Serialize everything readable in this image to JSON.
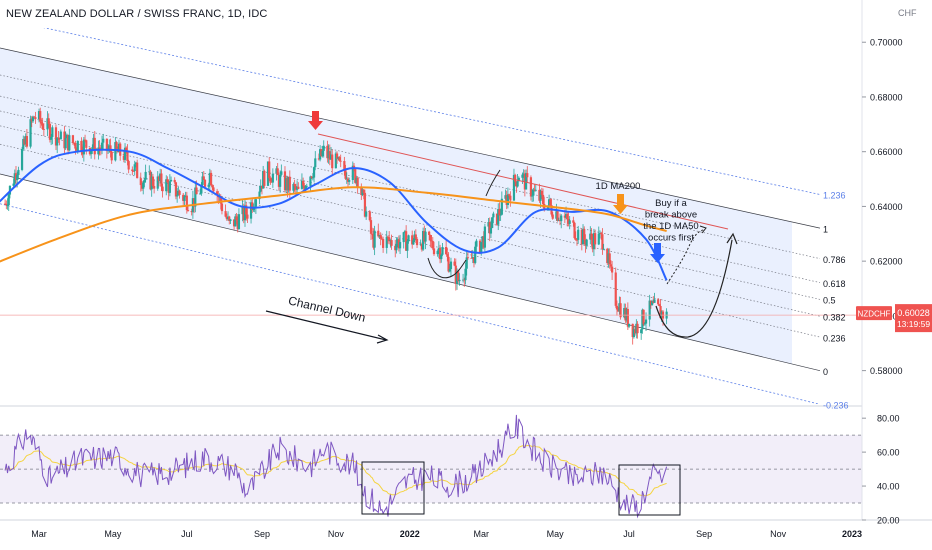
{
  "header": {
    "title": "NEW ZEALAND DOLLAR / SWISS FRANC, 1D, IDC",
    "currency": "CHF"
  },
  "price_badge": {
    "symbol": "NZDCHF",
    "price": "0.60028",
    "countdown": "13:19:59"
  },
  "colors": {
    "ma50": "#2962ff",
    "ma200": "#f7931a",
    "bull": "#26a69a",
    "bear": "#ef5350",
    "channel_fill": "#e3ebfd",
    "fib_line": "#787b86",
    "outer_line": "#5b7fe8",
    "rsi_line": "#7e57c2",
    "rsi_ma": "#f5d442",
    "rsi_band": "#ede7f6",
    "annotation_red": "#ef3a3a",
    "annotation_orange": "#f7931a",
    "annotation_blue": "#2962ff",
    "price_line": "#f4a6a6"
  },
  "chart_data": [
    {
      "type": "candlestick",
      "title": "NEW ZEALAND DOLLAR / SWISS FRANC, 1D, IDC",
      "ylabel": "CHF",
      "ylim": [
        0.5678,
        0.7052
      ],
      "x_tick_labels": [
        "Mar",
        "May",
        "Jul",
        "Sep",
        "Nov",
        "2022",
        "Mar",
        "May",
        "Jul",
        "Sep",
        "Nov",
        "2023"
      ],
      "y_tick_labels": [
        "0.70000",
        "0.68000",
        "0.66000",
        "0.64000",
        "0.62000",
        "0.60000",
        "0.58000"
      ],
      "current_price": 0.60028,
      "price_path": {
        "dates": [
          "2021-02-01",
          "2021-02-25",
          "2021-03-20",
          "2021-04-15",
          "2021-05-10",
          "2021-05-25",
          "2021-06-15",
          "2021-07-05",
          "2021-07-20",
          "2021-08-05",
          "2021-08-20",
          "2021-09-05",
          "2021-10-01",
          "2021-10-22",
          "2021-11-05",
          "2021-11-19",
          "2021-12-01",
          "2021-12-20",
          "2022-01-10",
          "2022-01-28",
          "2022-02-10",
          "2022-02-25",
          "2022-03-15",
          "2022-04-01",
          "2022-04-15",
          "2022-05-05",
          "2022-05-25",
          "2022-06-10",
          "2022-06-20",
          "2022-07-05",
          "2022-07-20",
          "2022-08-01"
        ],
        "close": [
          0.641,
          0.673,
          0.664,
          0.662,
          0.659,
          0.65,
          0.648,
          0.641,
          0.652,
          0.633,
          0.638,
          0.653,
          0.645,
          0.66,
          0.654,
          0.651,
          0.628,
          0.627,
          0.628,
          0.624,
          0.613,
          0.624,
          0.637,
          0.652,
          0.644,
          0.637,
          0.628,
          0.628,
          0.606,
          0.595,
          0.603,
          0.6
        ]
      },
      "ma_series": [
        {
          "name": "1D MA50",
          "x": [
            "2021-01-20",
            "2021-03-01",
            "2021-04-01",
            "2021-05-15",
            "2021-06-15",
            "2021-07-15",
            "2021-08-15",
            "2021-09-15",
            "2021-10-15",
            "2021-11-15",
            "2021-12-15",
            "2022-01-15",
            "2022-02-15",
            "2022-03-15",
            "2022-04-15",
            "2022-05-15",
            "2022-06-15",
            "2022-07-15",
            "2022-08-01"
          ],
          "y": [
            0.6385,
            0.655,
            0.66,
            0.66,
            0.654,
            0.647,
            0.64,
            0.641,
            0.648,
            0.654,
            0.649,
            0.634,
            0.624,
            0.625,
            0.638,
            0.638,
            0.638,
            0.628,
            0.613
          ]
        },
        {
          "name": "1D MA200",
          "x": [
            "2021-01-20",
            "2021-03-15",
            "2021-05-15",
            "2021-07-15",
            "2021-09-15",
            "2021-11-15",
            "2022-01-15",
            "2022-03-15",
            "2022-05-15",
            "2022-06-15",
            "2022-07-15",
            "2022-08-01"
          ],
          "y": [
            0.6185,
            0.628,
            0.637,
            0.641,
            0.644,
            0.647,
            0.645,
            0.642,
            0.639,
            0.637,
            0.633,
            0.631
          ]
        }
      ],
      "fibonacci_channel": {
        "levels": [
          "1.236",
          "1",
          "0.786",
          "0.618",
          "0.5",
          "0.382",
          "0.236",
          "0",
          "-0.236"
        ],
        "level_values": [
          1.236,
          1,
          0.786,
          0.618,
          0.5,
          0.382,
          0.236,
          0,
          -0.236
        ]
      },
      "annotations": [
        {
          "text": "1D MA200"
        },
        {
          "text": "Buy if a break above the 1D MA50 occurs first"
        },
        {
          "text": "Channel Down"
        }
      ]
    },
    {
      "type": "line",
      "indicator": "RSI",
      "ylim": [
        20,
        86
      ],
      "y_tick_labels": [
        "80.00",
        "60.00",
        "40.00",
        "20.00"
      ],
      "reference_lines": [
        70,
        50,
        30
      ],
      "series": [
        {
          "x": [
            "2021-02-01",
            "2021-02-20",
            "2021-03-10",
            "2021-04-05",
            "2021-05-01",
            "2021-05-25",
            "2021-06-20",
            "2021-07-15",
            "2021-08-10",
            "2021-08-20",
            "2021-09-15",
            "2021-10-10",
            "2021-10-22",
            "2021-11-15",
            "2021-11-26",
            "2021-12-10",
            "2021-12-28",
            "2022-01-15",
            "2022-02-05",
            "2022-02-25",
            "2022-03-15",
            "2022-03-30",
            "2022-04-20",
            "2022-05-15",
            "2022-06-10",
            "2022-06-28",
            "2022-07-08",
            "2022-07-20",
            "2022-08-01"
          ],
          "y": [
            50,
            72,
            44,
            56,
            58,
            46,
            49,
            57,
            50,
            36,
            62,
            51,
            62,
            52,
            36,
            25,
            42,
            46,
            40,
            46,
            62,
            75,
            55,
            44,
            48,
            30,
            27,
            46,
            45
          ]
        }
      ]
    }
  ]
}
